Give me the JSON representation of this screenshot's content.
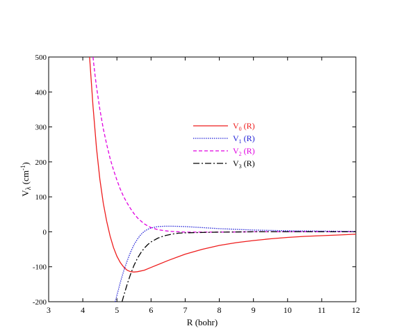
{
  "chart_data": {
    "type": "line",
    "xlabel": "R (bohr)",
    "ylabel": {
      "base": "V",
      "sub": "λ",
      "unit_prefix": " (cm",
      "unit_sup": "-1",
      "unit_suffix": ")"
    },
    "xlim": [
      3,
      12
    ],
    "ylim": [
      -200,
      500
    ],
    "xticks": [
      3,
      4,
      5,
      6,
      7,
      8,
      9,
      10,
      11,
      12
    ],
    "yticks": [
      -200,
      -100,
      0,
      100,
      200,
      300,
      400,
      500
    ],
    "grid": false,
    "legend_position": "center",
    "series": [
      {
        "name": "V0 (R)",
        "label": {
          "base": "V",
          "sub": "0",
          "suffix": " (R)"
        },
        "color": "#ee1c1c",
        "dash": "solid",
        "x": [
          4.2,
          4.3,
          4.4,
          4.5,
          4.6,
          4.7,
          4.8,
          4.9,
          5.0,
          5.1,
          5.2,
          5.3,
          5.4,
          5.5,
          5.6,
          5.8,
          6.0,
          6.5,
          7.0,
          7.5,
          8.0,
          8.5,
          9.0,
          9.5,
          10.0,
          10.5,
          11.0,
          11.5,
          12.0
        ],
        "y": [
          500,
          360,
          240,
          150,
          82,
          30,
          -12,
          -45,
          -70,
          -88,
          -101,
          -110,
          -114,
          -115,
          -114,
          -110,
          -102,
          -82,
          -64,
          -50,
          -39,
          -31,
          -25,
          -20,
          -16,
          -13,
          -11,
          -9,
          -7
        ]
      },
      {
        "name": "V1 (R)",
        "label": {
          "base": "V",
          "sub": "1",
          "suffix": " (R)"
        },
        "color": "#1f1fd6",
        "dash": "dotted",
        "x": [
          4.95,
          5.0,
          5.1,
          5.2,
          5.3,
          5.4,
          5.5,
          5.6,
          5.7,
          5.8,
          5.9,
          6.0,
          6.2,
          6.4,
          6.6,
          6.8,
          7.0,
          7.5,
          8.0,
          8.5,
          9.0,
          9.5,
          10.0,
          11.0,
          12.0
        ],
        "y": [
          -200,
          -182,
          -145,
          -112,
          -83,
          -58,
          -37,
          -21,
          -8,
          1,
          7,
          11,
          15,
          16,
          16,
          15.5,
          15,
          12,
          9,
          7,
          5,
          4,
          3,
          2,
          1
        ]
      },
      {
        "name": "V2 (R)",
        "label": {
          "base": "V",
          "sub": "2",
          "suffix": " (R)"
        },
        "color": "#e000e0",
        "dash": "dashed",
        "x": [
          4.3,
          4.35,
          4.4,
          4.5,
          4.6,
          4.7,
          4.8,
          4.9,
          5.0,
          5.1,
          5.2,
          5.3,
          5.4,
          5.5,
          5.6,
          5.7,
          5.8,
          5.9,
          6.0,
          6.2,
          6.4,
          6.6,
          6.8,
          7.0,
          7.5,
          8.0,
          9.0,
          10.0,
          12.0
        ],
        "y": [
          500,
          455,
          415,
          350,
          295,
          250,
          210,
          177,
          148,
          122,
          100,
          82,
          66,
          52,
          40,
          31,
          23,
          17,
          12,
          6,
          3,
          1,
          0,
          -1,
          -1,
          -1,
          0,
          0,
          0
        ]
      },
      {
        "name": "V3 (R)",
        "label": {
          "base": "V",
          "sub": "3",
          "suffix": " (R)"
        },
        "color": "#000000",
        "dash": "dashdot",
        "x": [
          5.15,
          5.2,
          5.3,
          5.4,
          5.5,
          5.6,
          5.7,
          5.8,
          5.9,
          6.0,
          6.2,
          6.4,
          6.6,
          6.8,
          7.0,
          7.5,
          8.0,
          9.0,
          10.0,
          11.0,
          12.0
        ],
        "y": [
          -200,
          -183,
          -150,
          -121,
          -96,
          -76,
          -60,
          -47,
          -37,
          -29,
          -18,
          -11,
          -7,
          -4,
          -3,
          -2,
          -1,
          0,
          0,
          0,
          0
        ]
      }
    ]
  }
}
